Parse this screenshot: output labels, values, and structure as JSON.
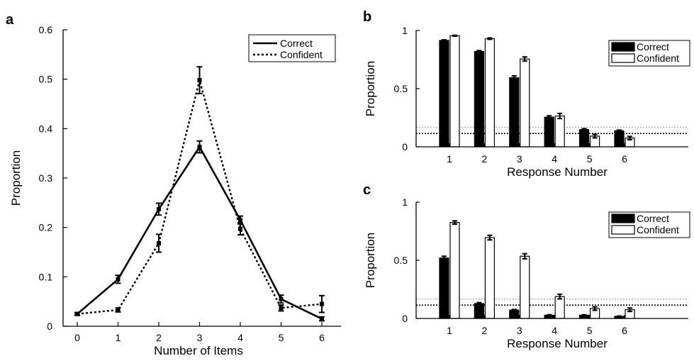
{
  "colors": {
    "ink": "#000000",
    "paper": "#ffffff",
    "chance_light": "#b5b5b5",
    "chance_dark": "#000000"
  },
  "chart_data": [
    {
      "panel": "a",
      "type": "line",
      "xlabel": "Number of Items",
      "ylabel": "Proportion",
      "xlim": [
        0,
        6
      ],
      "ylim": [
        0,
        0.6
      ],
      "x_ticks": [
        "0",
        "1",
        "2",
        "3",
        "4",
        "5",
        "6"
      ],
      "y_ticks": [
        "0",
        "0.1",
        "0.2",
        "0.3",
        "0.4",
        "0.5",
        "0.6"
      ],
      "legend_position": "top-right",
      "x": [
        0,
        1,
        2,
        3,
        4,
        5,
        6
      ],
      "series": [
        {
          "name": "Correct",
          "style": "solid",
          "values": [
            0.025,
            0.095,
            0.237,
            0.363,
            0.215,
            0.055,
            0.015
          ],
          "errors": [
            0.003,
            0.008,
            0.012,
            0.012,
            0.008,
            0.008,
            0.004
          ]
        },
        {
          "name": "Confident",
          "style": "dotted",
          "values": [
            0.025,
            0.033,
            0.168,
            0.498,
            0.197,
            0.037,
            0.045
          ],
          "errors": [
            0.002,
            0.004,
            0.018,
            0.027,
            0.012,
            0.006,
            0.017
          ]
        }
      ]
    },
    {
      "panel": "b",
      "type": "bar",
      "xlabel": "Response Number",
      "ylabel": "Proportion",
      "ylim": [
        0,
        1
      ],
      "categories": [
        "1",
        "2",
        "3",
        "4",
        "5",
        "6"
      ],
      "y_ticks": [
        "0",
        "0.5",
        "1"
      ],
      "legend_position": "top-right",
      "chance_lines": [
        0.167,
        0.115
      ],
      "series": [
        {
          "name": "Correct",
          "fill": "#000000",
          "values": [
            0.915,
            0.82,
            0.595,
            0.255,
            0.148,
            0.138
          ],
          "errors": [
            0.005,
            0.008,
            0.015,
            0.012,
            0.008,
            0.006
          ]
        },
        {
          "name": "Confident",
          "fill": "#ffffff",
          "values": [
            0.955,
            0.93,
            0.755,
            0.265,
            0.092,
            0.075
          ],
          "errors": [
            0.004,
            0.006,
            0.018,
            0.022,
            0.015,
            0.014
          ]
        }
      ]
    },
    {
      "panel": "c",
      "type": "bar",
      "xlabel": "Response Number",
      "ylabel": "Proportion",
      "ylim": [
        0,
        1
      ],
      "categories": [
        "1",
        "2",
        "3",
        "4",
        "5",
        "6"
      ],
      "y_ticks": [
        "0",
        "0.5",
        "1"
      ],
      "legend_position": "top-right",
      "chance_lines": [
        0.167,
        0.115
      ],
      "series": [
        {
          "name": "Correct",
          "fill": "#000000",
          "values": [
            0.52,
            0.128,
            0.072,
            0.028,
            0.028,
            0.018
          ],
          "errors": [
            0.015,
            0.008,
            0.005,
            0.004,
            0.004,
            0.003
          ]
        },
        {
          "name": "Confident",
          "fill": "#ffffff",
          "values": [
            0.825,
            0.695,
            0.535,
            0.188,
            0.085,
            0.075
          ],
          "errors": [
            0.014,
            0.02,
            0.022,
            0.02,
            0.015,
            0.015
          ]
        }
      ]
    }
  ]
}
